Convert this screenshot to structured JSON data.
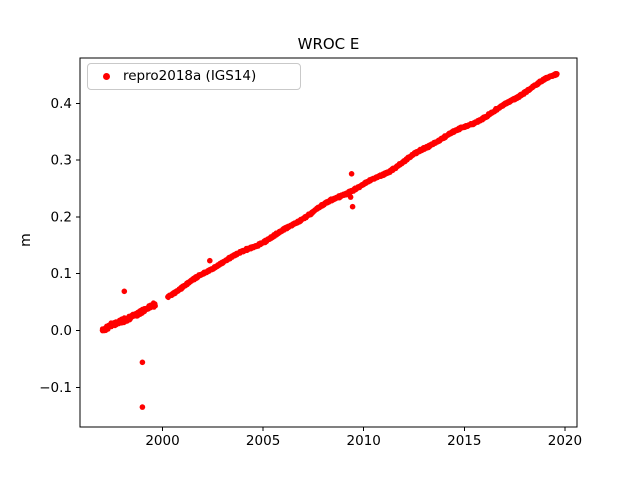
{
  "chart_data": {
    "type": "scatter",
    "title": "WROC E",
    "xlabel": "",
    "ylabel": "m",
    "legend": {
      "position": "upper left",
      "entries": [
        {
          "label": "repro2018a (IGS14)",
          "marker": "dot-icon",
          "color": "#ff0000"
        }
      ]
    },
    "axis": {
      "xlim": [
        1995.9,
        2020.6
      ],
      "ylim": [
        -0.17,
        0.48
      ],
      "xticks": [
        2000,
        2005,
        2010,
        2015,
        2020
      ],
      "xtick_labels": [
        "2000",
        "2005",
        "2010",
        "2015",
        "2020"
      ],
      "yticks": [
        -0.1,
        0.0,
        0.1,
        0.2,
        0.3,
        0.4
      ],
      "ytick_labels": [
        "−0.1",
        "0.0",
        "0.1",
        "0.2",
        "0.3",
        "0.4"
      ],
      "grid": false,
      "spine_color": "#000000",
      "tick_label_color": "#000000"
    },
    "series": [
      {
        "name": "repro2018a (IGS14)",
        "color": "#ff0000",
        "trend": {
          "slope_m_per_year": 0.02,
          "reference_point": [
            1997.0,
            0.0
          ]
        },
        "segments": [
          {
            "x_start": 1997.0,
            "x_end": 1999.65,
            "y_start": -0.003,
            "y_end": 0.046,
            "scatter": 0.005,
            "step_years": 0.01
          },
          {
            "x_start": 2000.25,
            "x_end": 2019.62,
            "y_start": 0.063,
            "y_end": 0.451,
            "scatter": 0.0026,
            "step_years": 0.01
          }
        ],
        "outliers": [
          [
            1998.1,
            0.069
          ],
          [
            1999.0,
            -0.056
          ],
          [
            1999.0,
            -0.135
          ],
          [
            2002.35,
            0.123
          ],
          [
            2009.35,
            0.235
          ],
          [
            2009.4,
            0.276
          ],
          [
            2009.45,
            0.218
          ]
        ]
      }
    ]
  }
}
